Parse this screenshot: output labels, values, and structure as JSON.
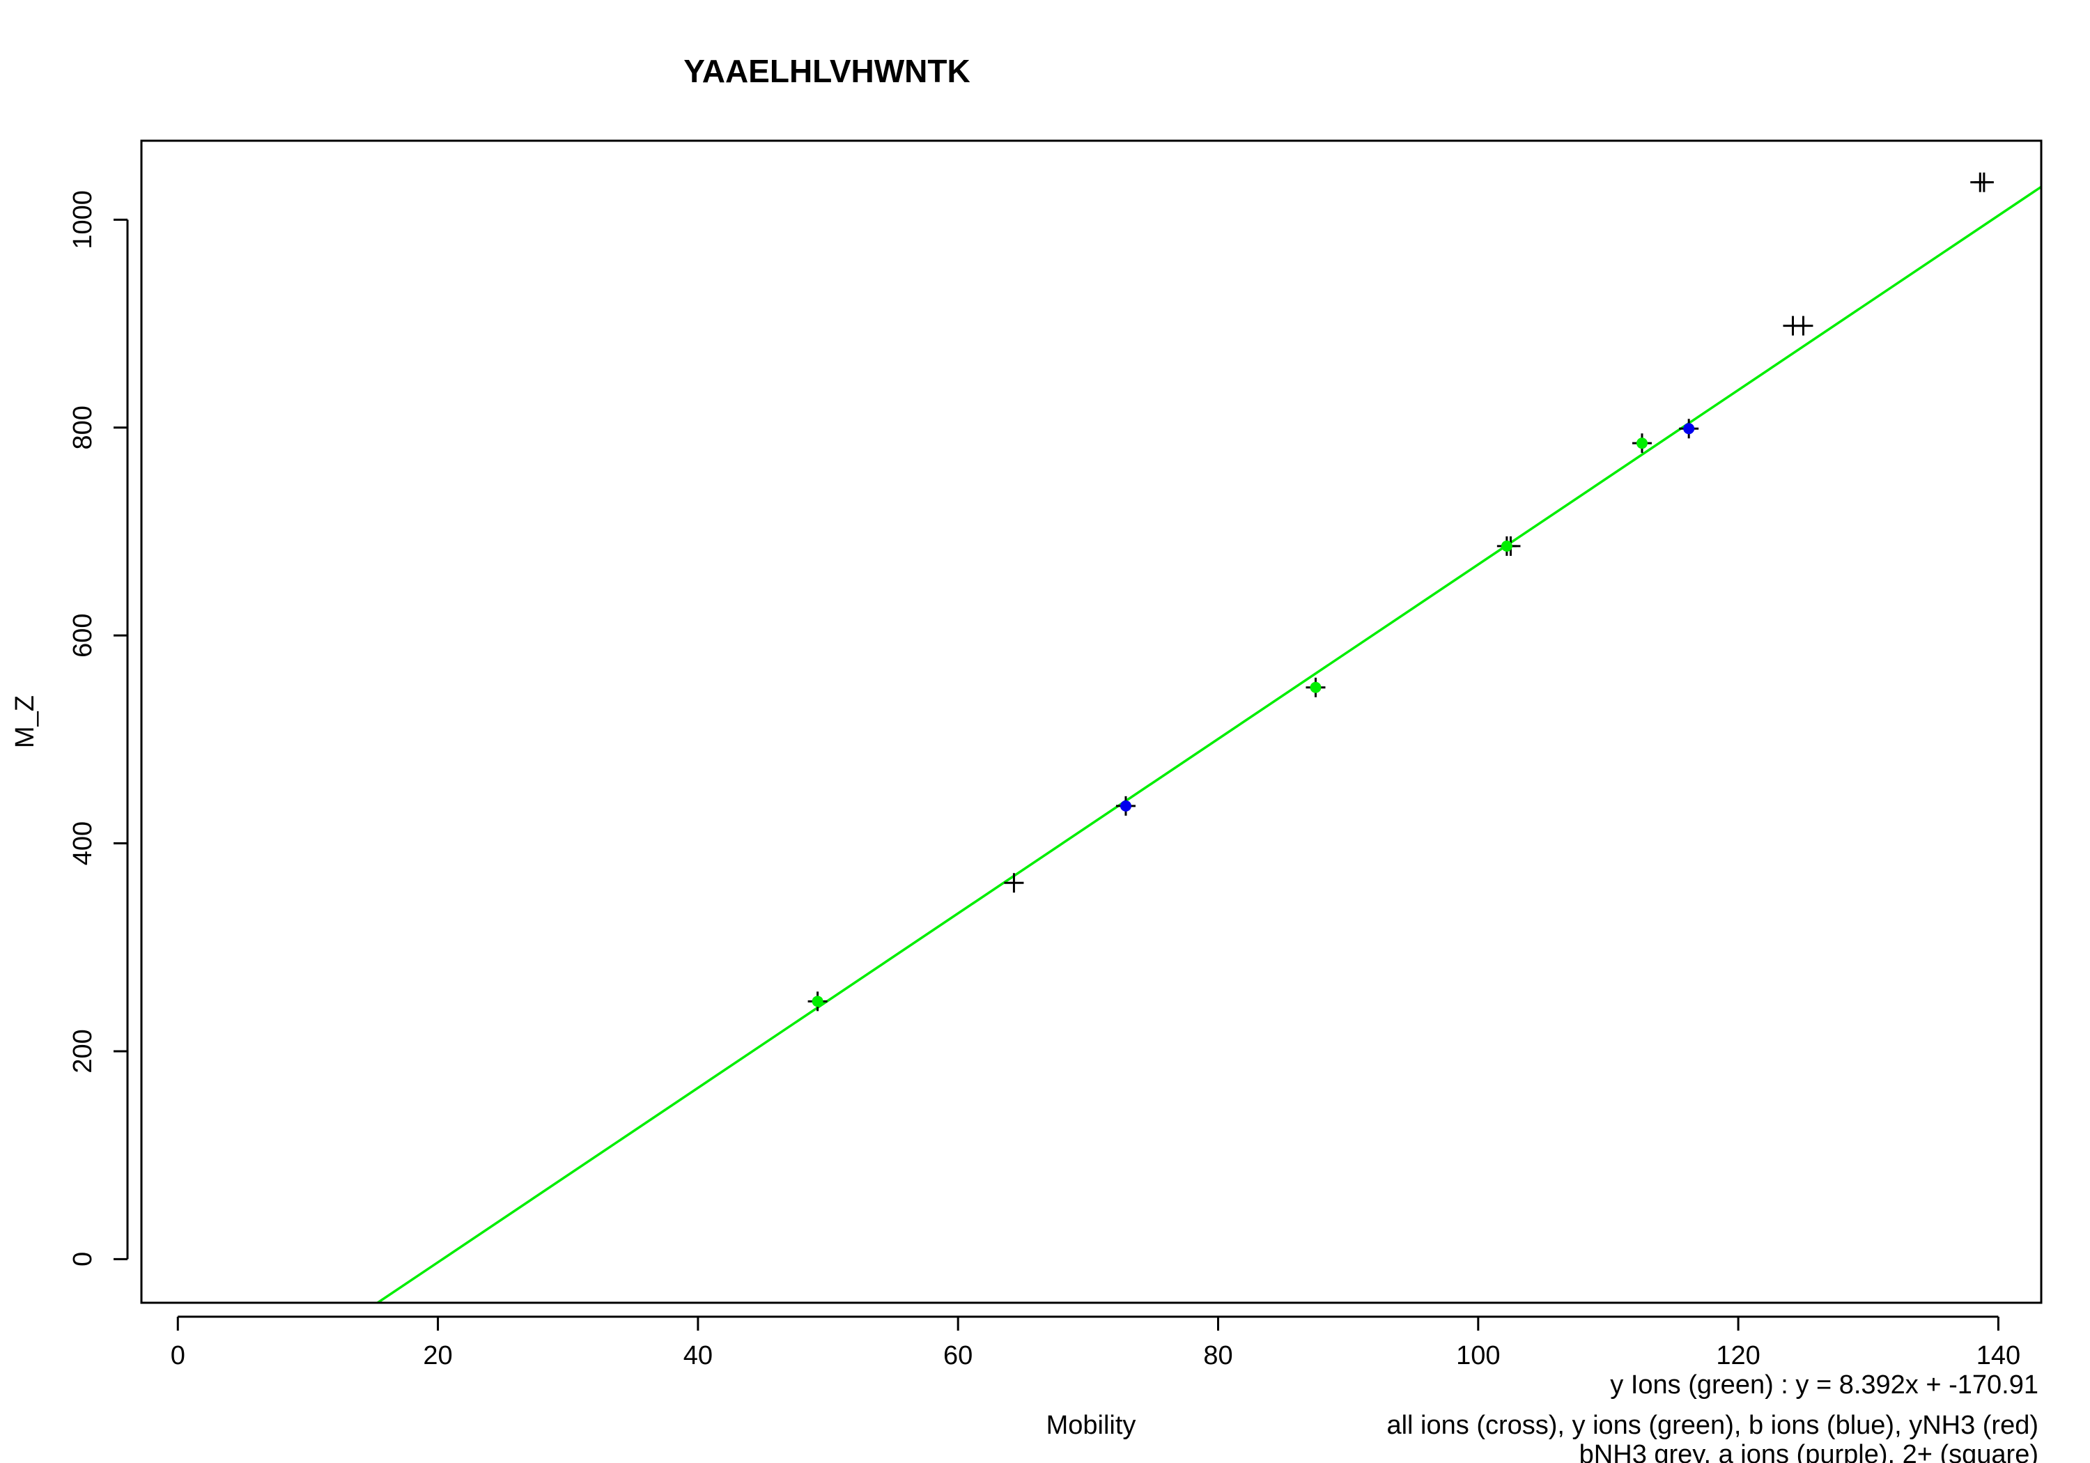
{
  "chart_data": {
    "type": "scatter",
    "title": "YAAELHLVHWNTK",
    "xlabel": "Mobility",
    "ylabel": "M_Z",
    "xlim": [
      -2.8,
      143.3
    ],
    "ylim": [
      -42,
      1076
    ],
    "x_ticks": [
      "0",
      "20",
      "40",
      "60",
      "80",
      "100",
      "120",
      "140"
    ],
    "y_ticks": [
      "0",
      "200",
      "400",
      "600",
      "800",
      "1000"
    ],
    "grid": false,
    "fit_line": {
      "label": "y Ions (green) : y = 8.392x + -170.91",
      "slope": 8.392,
      "intercept": -170.91,
      "color": "#00ee00"
    },
    "legend_lines": [
      "all ions (cross), y ions (green), b ions (blue), yNH3 (red)",
      "bNH3 grey, a ions (purple), 2+ (square)"
    ],
    "colors": {
      "all": "#000000",
      "y": "#00ee00",
      "b": "#0000ee"
    },
    "series": [
      {
        "kind": "all",
        "points": [
          [
            49.2,
            248
          ],
          [
            64.3,
            362
          ],
          [
            72.9,
            436
          ],
          [
            87.5,
            550
          ],
          [
            102.2,
            686
          ],
          [
            102.5,
            686
          ],
          [
            112.6,
            785
          ],
          [
            116.2,
            799
          ],
          [
            124.2,
            898
          ],
          [
            125.0,
            898
          ],
          [
            138.6,
            1036
          ],
          [
            138.9,
            1036
          ]
        ]
      },
      {
        "kind": "y",
        "points": [
          [
            49.2,
            248
          ],
          [
            87.5,
            550
          ],
          [
            102.2,
            686
          ],
          [
            112.6,
            785
          ]
        ]
      },
      {
        "kind": "b",
        "points": [
          [
            72.9,
            436
          ],
          [
            116.2,
            799
          ]
        ]
      }
    ]
  }
}
